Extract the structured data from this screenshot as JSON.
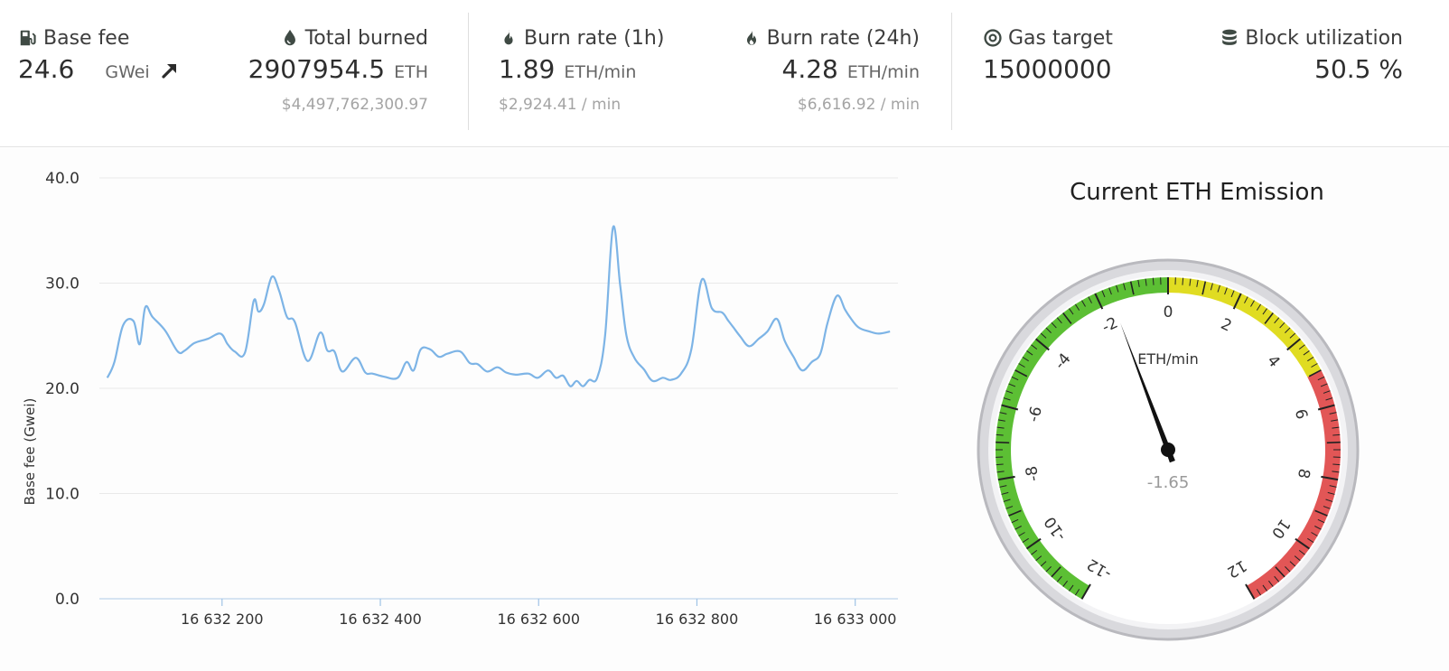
{
  "stats": {
    "base_fee": {
      "label": "Base fee",
      "value": "24.6",
      "unit": "GWei",
      "icon": "gas-pump-icon",
      "trend_icon": "arrow-up-right-icon"
    },
    "total_burned": {
      "label": "Total burned",
      "value": "2907954.5",
      "unit": "ETH",
      "usd": "$4,497,762,300.97",
      "icon": "drop-icon"
    },
    "burn_rate_1h": {
      "label": "Burn rate (1h)",
      "value": "1.89",
      "unit": "ETH/min",
      "usd": "$2,924.41 / min",
      "icon": "fire-icon"
    },
    "burn_rate_24h": {
      "label": "Burn rate (24h)",
      "value": "4.28",
      "unit": "ETH/min",
      "usd": "$6,616.92 / min",
      "icon": "fire-icon"
    },
    "gas_target": {
      "label": "Gas target",
      "value": "15000000",
      "icon": "target-icon"
    },
    "block_utilization": {
      "label": "Block utilization",
      "value": "50.5 %",
      "icon": "database-icon"
    }
  },
  "chart_data": [
    {
      "type": "line",
      "ylabel": "Base fee (Gwei)",
      "ylim": [
        0,
        40
      ],
      "y_ticks": [
        "0.0",
        "10.0",
        "20.0",
        "30.0",
        "40.0"
      ],
      "x_ticks": [
        {
          "value": 16632200,
          "label": "16 632 200"
        },
        {
          "value": 16632400,
          "label": "16 632 400"
        },
        {
          "value": 16632600,
          "label": "16 632 600"
        },
        {
          "value": 16632800,
          "label": "16 632 800"
        },
        {
          "value": 16633000,
          "label": "16 633 000"
        }
      ],
      "xlim": [
        16632045,
        16633054
      ],
      "grid": true,
      "color": "#7db4e6",
      "series": [
        {
          "x": [
            16632055,
            16632064,
            16632075,
            16632088,
            16632096,
            16632103,
            16632112,
            16632128,
            16632144,
            16632153,
            16632165,
            16632182,
            16632198,
            16632207,
            16632216,
            16632229,
            16632240,
            16632246,
            16632253,
            16632263,
            16632272,
            16632282,
            16632292,
            16632308,
            16632324,
            16632333,
            16632342,
            16632352,
            16632369,
            16632381,
            16632390,
            16632405,
            16632422,
            16632433,
            16632442,
            16632451,
            16632463,
            16632474,
            16632485,
            16632501,
            16632513,
            16632523,
            16632535,
            16632548,
            16632559,
            16632571,
            16632587,
            16632599,
            16632612,
            16632622,
            16632631,
            16632640,
            16632648,
            16632656,
            16632664,
            16632674,
            16632684,
            16632694,
            16632703,
            16632711,
            16632721,
            16632733,
            16632744,
            16632757,
            16632767,
            16632780,
            16632793,
            16632806,
            16632819,
            16632832,
            16632839,
            16632846,
            16632855,
            16632866,
            16632878,
            16632889,
            16632901,
            16632911,
            16632922,
            16632933,
            16632945,
            16632956,
            16632965,
            16632977,
            16632987,
            16632993,
            16633004,
            16633018,
            16633030,
            16633044
          ],
          "y": [
            21.0,
            22.5,
            26.0,
            26.4,
            24.2,
            27.7,
            26.8,
            25.5,
            23.5,
            23.6,
            24.3,
            24.7,
            25.2,
            24.2,
            23.5,
            23.4,
            28.3,
            27.3,
            28.0,
            30.6,
            29.3,
            26.8,
            26.3,
            22.6,
            25.3,
            23.6,
            23.5,
            21.6,
            22.9,
            21.5,
            21.4,
            21.1,
            21.0,
            22.5,
            21.7,
            23.7,
            23.7,
            23.0,
            23.3,
            23.5,
            22.4,
            22.3,
            21.6,
            22.0,
            21.5,
            21.3,
            21.4,
            21.0,
            21.7,
            21.0,
            21.2,
            20.2,
            20.7,
            20.2,
            20.8,
            21.0,
            25.0,
            35.3,
            29.8,
            25.0,
            22.9,
            21.8,
            20.7,
            21.0,
            20.8,
            21.4,
            23.7,
            30.3,
            27.6,
            27.2,
            26.5,
            25.8,
            24.9,
            24.0,
            24.7,
            25.4,
            26.6,
            24.5,
            23.0,
            21.7,
            22.5,
            23.3,
            26.2,
            28.8,
            27.5,
            26.8,
            25.8,
            25.4,
            25.2,
            25.4
          ]
        }
      ]
    },
    {
      "type": "gauge",
      "title": "Current ETH Emission",
      "unit": "ETH/min",
      "value": -1.65,
      "value_label": "-1.65",
      "range": [
        -12,
        12
      ],
      "tick_labels": [
        "-12",
        "-10",
        "-8",
        "-6",
        "-4",
        "-2",
        "0",
        "2",
        "4",
        "6",
        "8",
        "10",
        "12"
      ],
      "bands": [
        {
          "from": -12,
          "to": 0,
          "color": "#5cbf34"
        },
        {
          "from": 0,
          "to": 5,
          "color": "#e0dc22"
        },
        {
          "from": 5,
          "to": 12,
          "color": "#e25656"
        }
      ]
    }
  ]
}
